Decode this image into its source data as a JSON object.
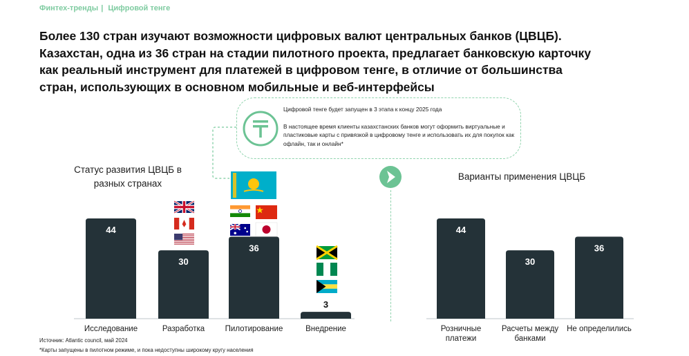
{
  "breadcrumb": {
    "section": "Финтех-тренды",
    "separator": "|",
    "topic": "Цифровой тенге"
  },
  "headline": {
    "lines": [
      "Более 130 стран изучают возможности цифровых валют центральных банков (ЦВЦБ).",
      "Казахстан, одна из 36 стран на стадии пилотного проекта, предлагает банковскую карточку",
      "как реальный инструмент для платежей в цифровом тенге, в отличие от большинства",
      "стран, использующих в основном мобильные и веб-интерфейсы"
    ]
  },
  "callout": {
    "icon": "tenge-icon",
    "line1": "Цифровой тенге будет запущен в 3 этапа к концу 2025 года",
    "line2": "В настоящее время клиенты казахстанских банков могут оформить виртуальные и пластиковые карты с привязкой в цифровому тенге и использовать их для покупок как офлайн, так и онлайн*"
  },
  "colors": {
    "bar": "#243238",
    "accent": "#8fd3ad",
    "accent_dark": "#6cc394",
    "breadcrumb": "#7ecba0"
  },
  "chart_data": [
    {
      "type": "bar",
      "title": "Статус развития ЦВЦБ в разных странах",
      "categories": [
        "Исследование",
        "Разработка",
        "Пилотирование",
        "Внедрение"
      ],
      "values": [
        44,
        30,
        36,
        3
      ],
      "ylim": [
        0,
        44
      ],
      "flags": [
        [],
        [
          "united-kingdom-flag",
          "canada-flag",
          "usa-flag"
        ],
        [
          "kazakhstan-flag",
          "india-flag",
          "china-flag",
          "australia-flag",
          "japan-flag"
        ],
        [
          "jamaica-flag",
          "nigeria-flag",
          "bahamas-flag"
        ]
      ]
    },
    {
      "type": "bar",
      "title": "Варианты применения ЦВЦБ",
      "categories": [
        "Розничные платежи",
        "Расчеты между банками",
        "Не определились"
      ],
      "values": [
        44,
        30,
        36
      ],
      "ylim": [
        0,
        44
      ]
    }
  ],
  "footer": {
    "source": "Источник: Atlantic council, май 2024",
    "note": "*Карты запущены в пилотном режиме, и пока недоступны широкому кругу населения"
  }
}
